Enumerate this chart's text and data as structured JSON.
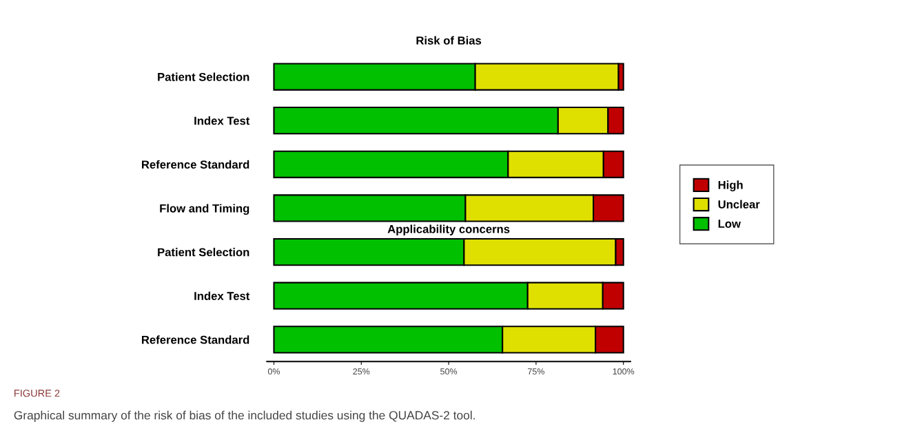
{
  "chart_data": {
    "type": "bar",
    "orientation": "horizontal",
    "stacked": true,
    "title": "Risk of Bias",
    "categories": [
      "Patient Selection",
      "Index Test",
      "Reference Standard",
      "Flow and Timing",
      "Patient Selection",
      "Index Test",
      "Reference Standard"
    ],
    "series": [
      {
        "name": "Low",
        "color": "#00c000",
        "values": [
          57.6,
          81.3,
          67.0,
          54.8,
          54.4,
          72.6,
          65.4
        ]
      },
      {
        "name": "Unclear",
        "color": "#e0e000",
        "values": [
          41.0,
          14.3,
          27.3,
          36.6,
          43.4,
          21.5,
          26.6
        ]
      },
      {
        "name": "High",
        "color": "#c00000",
        "values": [
          1.4,
          4.4,
          5.7,
          8.6,
          2.2,
          5.9,
          8.0
        ]
      }
    ],
    "xlim": [
      -2,
      102
    ],
    "xticks": [
      {
        "value": 0,
        "label": "0%"
      },
      {
        "value": 25,
        "label": "25%"
      },
      {
        "value": 50,
        "label": "50%"
      },
      {
        "value": 75,
        "label": "75%"
      },
      {
        "value": 100,
        "label": "100%"
      }
    ],
    "legend": "right",
    "grid": false,
    "annotations": [
      "Applicability concerns",
      "FIGURE 2",
      "Graphical summary of the risk of bias of the included studies using the QUADAS-2 tool."
    ]
  }
}
